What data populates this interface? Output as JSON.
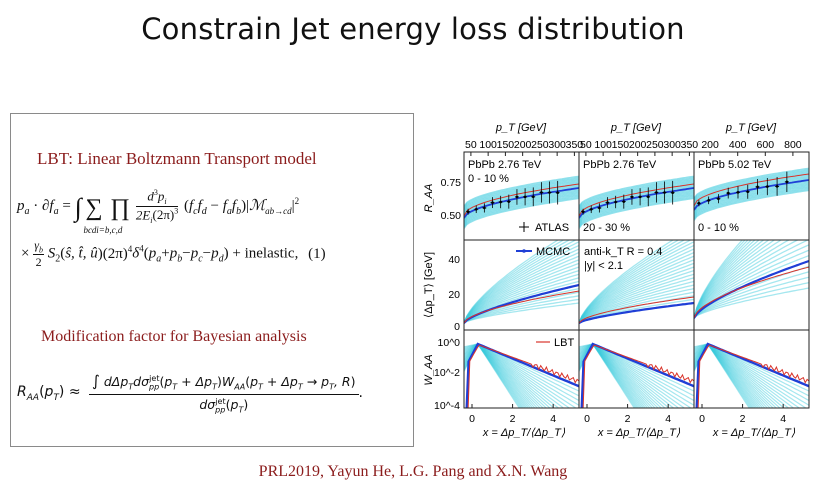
{
  "slide": {
    "title": "Constrain Jet energy loss distribution",
    "citation": "PRL2019, Yayun He, L.G. Pang and X.N. Wang"
  },
  "equation_box": {
    "lbt_heading": "LBT: Linear Boltzmann Transport model",
    "eq1_label": "(1)",
    "eq1_inelastic": "+ inelastic,",
    "bayes_heading": "Modification factor for Bayesian analysis"
  },
  "figure": {
    "top_axis_label": "p_T [GeV]",
    "top_ticks": [
      [
        "50",
        "100",
        "150",
        "200",
        "250",
        "300",
        "350"
      ],
      [
        "50",
        "100",
        "150",
        "200",
        "250",
        "300",
        "350"
      ],
      [
        "200",
        "400",
        "600",
        "800"
      ]
    ],
    "row_ylabels": [
      "R_AA",
      "⟨Δp_T⟩ [GeV]",
      "W_AA"
    ],
    "raa_yticks": [
      "0.50",
      "0.75"
    ],
    "dpt_yticks": [
      "0",
      "20",
      "40"
    ],
    "waa_yticks": [
      "10^0",
      "10^-2",
      "10^-4"
    ],
    "x_ticks": [
      "0",
      "2",
      "4"
    ],
    "x_label": "x = Δp_T/⟨Δp_T⟩",
    "panel_titles": [
      "PbPb 2.76 TeV",
      "PbPb 2.76 TeV",
      "PbPb 5.02 TeV"
    ],
    "centralities": [
      "0 - 10 %",
      "20 - 30 %",
      "0 - 10 %"
    ],
    "legend_atlas": "ATLAS",
    "legend_mcmc": "MCMC",
    "legend_lbt": "LBT",
    "jet_param_1": "anti-k_T R = 0.4",
    "jet_param_2": "|y| < 2.1",
    "colors": {
      "mcmc": "#1f3fd6",
      "lbt": "#d9342b",
      "band": "#37c9dc",
      "data": "#000000"
    }
  }
}
